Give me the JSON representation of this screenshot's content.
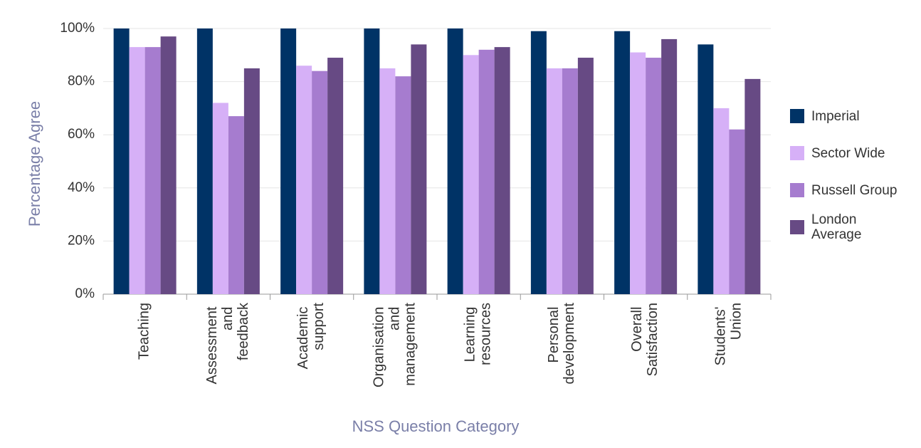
{
  "chart_data": {
    "type": "bar",
    "x_label": "NSS Question Category",
    "y_label": "Percentage Agree",
    "categories": [
      "Teaching",
      "Assessment and feedback",
      "Academic support",
      "Organisation and management",
      "Learning resources",
      "Personal development",
      "Overall Satisfaction",
      "Students' Union"
    ],
    "series": [
      {
        "name": "Imperial",
        "color": "#003366",
        "values": [
          100,
          100,
          100,
          100,
          100,
          99,
          99,
          94
        ]
      },
      {
        "name": "Sector Wide",
        "color": "#d6b0f7",
        "values": [
          93,
          72,
          86,
          85,
          90,
          85,
          91,
          70
        ]
      },
      {
        "name": "Russell Group",
        "color": "#a67ccf",
        "values": [
          93,
          67,
          84,
          82,
          92,
          85,
          89,
          62
        ]
      },
      {
        "name": "London Average",
        "color": "#674a84",
        "values": [
          97,
          85,
          89,
          94,
          93,
          89,
          96,
          81
        ]
      }
    ],
    "ylim": [
      0,
      100
    ],
    "yticks": [
      {
        "value": 0,
        "label": "0%"
      },
      {
        "value": 20,
        "label": "20%"
      },
      {
        "value": 40,
        "label": "40%"
      },
      {
        "value": 60,
        "label": "60%"
      },
      {
        "value": 80,
        "label": "80%"
      },
      {
        "value": 100,
        "label": "100%"
      }
    ],
    "grid": true
  }
}
